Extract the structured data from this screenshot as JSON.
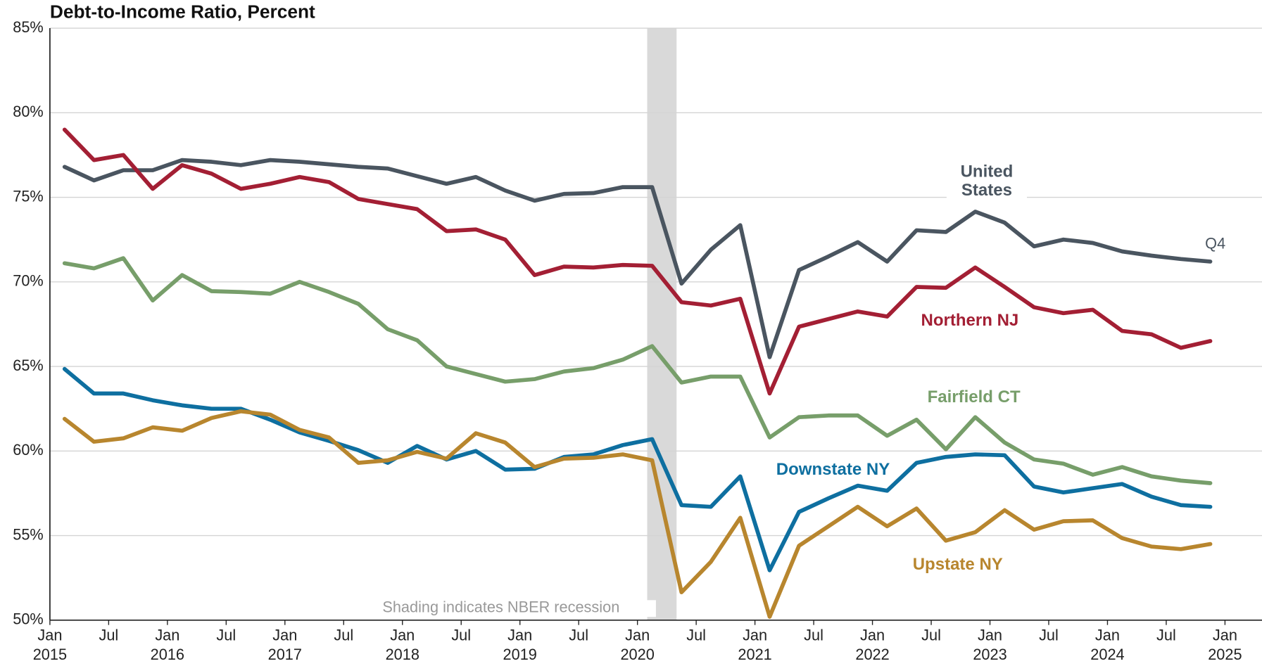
{
  "chart_data": {
    "type": "line",
    "title": "Debt-to-Income Ratio, Percent",
    "annotations": [
      "Shading indicates NBER recession",
      "Q4"
    ],
    "recession": [
      2020.083,
      2020.333
    ],
    "x": [
      2015.125,
      2015.375,
      2015.625,
      2015.875,
      2016.125,
      2016.375,
      2016.625,
      2016.875,
      2017.125,
      2017.375,
      2017.625,
      2017.875,
      2018.125,
      2018.375,
      2018.625,
      2018.875,
      2019.125,
      2019.375,
      2019.625,
      2019.875,
      2020.125,
      2020.375,
      2020.625,
      2020.875,
      2021.125,
      2021.375,
      2021.625,
      2021.875,
      2022.125,
      2022.375,
      2022.625,
      2022.875,
      2023.125,
      2023.375,
      2023.625,
      2023.875,
      2024.125,
      2024.375,
      2024.625,
      2024.875
    ],
    "series": [
      {
        "name": "United States",
        "color": "#4a5560",
        "values": [
          76.8,
          76.0,
          76.6,
          76.6,
          77.2,
          77.1,
          76.9,
          77.2,
          77.1,
          76.95,
          76.8,
          76.7,
          76.25,
          75.8,
          76.2,
          75.4,
          74.8,
          75.2,
          75.25,
          75.6,
          75.6,
          69.9,
          71.9,
          73.35,
          65.55,
          70.7,
          71.5,
          72.35,
          71.2,
          73.05,
          72.95,
          74.15,
          73.5,
          72.1,
          72.5,
          72.3,
          71.8,
          71.55,
          71.35,
          71.2
        ]
      },
      {
        "name": "Northern NJ",
        "color": "#a31f34",
        "values": [
          79.0,
          77.2,
          77.5,
          75.5,
          76.9,
          76.4,
          75.5,
          75.8,
          76.2,
          75.9,
          74.9,
          74.6,
          74.3,
          73.0,
          73.1,
          72.5,
          70.4,
          70.9,
          70.85,
          71.0,
          70.95,
          68.8,
          68.6,
          69.0,
          63.4,
          67.35,
          67.8,
          68.25,
          67.95,
          69.7,
          69.65,
          70.85,
          69.7,
          68.5,
          68.15,
          68.35,
          67.1,
          66.9,
          66.1,
          66.5
        ]
      },
      {
        "name": "Fairfield CT",
        "color": "#779e6a",
        "values": [
          71.1,
          70.8,
          71.4,
          68.9,
          70.4,
          69.45,
          69.4,
          69.3,
          70.0,
          69.4,
          68.7,
          67.2,
          66.55,
          65.0,
          64.55,
          64.1,
          64.25,
          64.7,
          64.9,
          65.4,
          66.2,
          64.05,
          64.4,
          64.4,
          60.8,
          62.0,
          62.1,
          62.1,
          60.9,
          61.85,
          60.1,
          62.0,
          60.5,
          59.5,
          59.25,
          58.6,
          59.05,
          58.5,
          58.25,
          58.1
        ]
      },
      {
        "name": "Downstate NY",
        "color": "#0e6fa0",
        "values": [
          64.85,
          63.4,
          63.4,
          63.0,
          62.7,
          62.5,
          62.5,
          61.85,
          61.1,
          60.6,
          60.05,
          59.3,
          60.3,
          59.5,
          60.0,
          58.9,
          58.95,
          59.65,
          59.8,
          60.35,
          60.7,
          56.8,
          56.7,
          58.5,
          52.95,
          56.4,
          57.2,
          57.95,
          57.65,
          59.3,
          59.65,
          59.8,
          59.75,
          57.9,
          57.55,
          57.8,
          58.05,
          57.3,
          56.8,
          56.7
        ]
      },
      {
        "name": "Upstate NY",
        "color": "#b8862e",
        "values": [
          61.9,
          60.55,
          60.75,
          61.4,
          61.2,
          61.95,
          62.35,
          62.15,
          61.25,
          60.8,
          59.3,
          59.45,
          59.95,
          59.55,
          61.05,
          60.5,
          59.05,
          59.55,
          59.6,
          59.8,
          59.45,
          51.65,
          53.45,
          56.05,
          50.2,
          54.4,
          55.55,
          56.7,
          55.55,
          56.6,
          54.7,
          55.2,
          56.5,
          55.35,
          55.85,
          55.9,
          54.85,
          54.35,
          54.2,
          54.5
        ]
      }
    ],
    "xlim": [
      2015,
      2025.315
    ],
    "xticks": [
      {
        "value": 2015,
        "label": "Jan\n2015"
      },
      {
        "value": 2015.5,
        "label": "Jul"
      },
      {
        "value": 2016,
        "label": "Jan\n2016"
      },
      {
        "value": 2016.5,
        "label": "Jul"
      },
      {
        "value": 2017,
        "label": "Jan\n2017"
      },
      {
        "value": 2017.5,
        "label": "Jul"
      },
      {
        "value": 2018,
        "label": "Jan\n2018"
      },
      {
        "value": 2018.5,
        "label": "Jul"
      },
      {
        "value": 2019,
        "label": "Jan\n2019"
      },
      {
        "value": 2019.5,
        "label": "Jul"
      },
      {
        "value": 2020,
        "label": "Jan\n2020"
      },
      {
        "value": 2020.5,
        "label": "Jul"
      },
      {
        "value": 2021,
        "label": "Jan\n2021"
      },
      {
        "value": 2021.5,
        "label": "Jul"
      },
      {
        "value": 2022,
        "label": "Jan\n2022"
      },
      {
        "value": 2022.5,
        "label": "Jul"
      },
      {
        "value": 2023,
        "label": "Jan\n2023"
      },
      {
        "value": 2023.5,
        "label": "Jul"
      },
      {
        "value": 2024,
        "label": "Jan\n2024"
      },
      {
        "value": 2024.5,
        "label": "Jul"
      },
      {
        "value": 2025,
        "label": "Jan\n2025"
      }
    ],
    "ylim": [
      50,
      85
    ],
    "yticks": [
      {
        "value": 50,
        "label": "50%"
      },
      {
        "value": 55,
        "label": "55%"
      },
      {
        "value": 60,
        "label": "60%"
      },
      {
        "value": 65,
        "label": "65%"
      },
      {
        "value": 70,
        "label": "70%"
      },
      {
        "value": 75,
        "label": "75%"
      },
      {
        "value": 80,
        "label": "80%"
      },
      {
        "value": 85,
        "label": "85%"
      }
    ],
    "grid": true
  }
}
